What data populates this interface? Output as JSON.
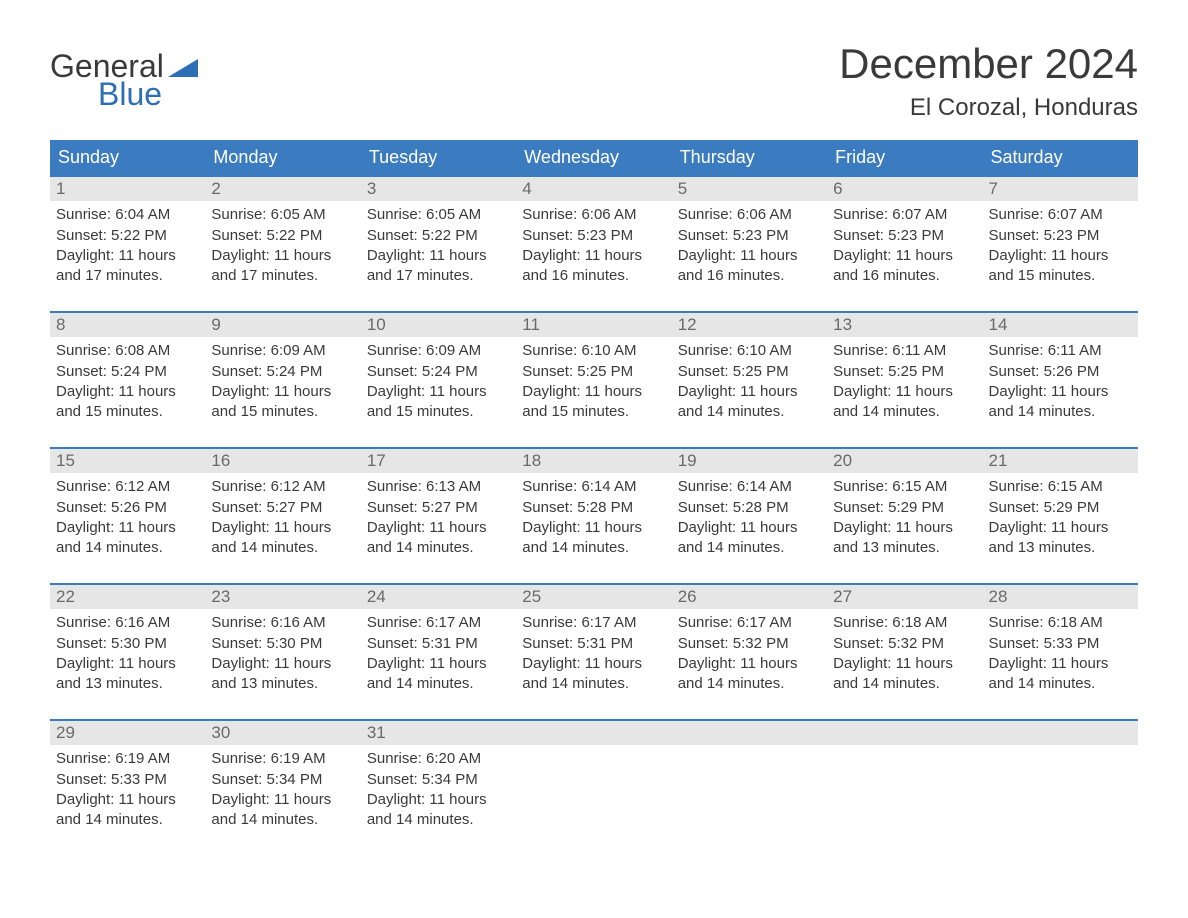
{
  "logo": {
    "word1": "General",
    "word2": "Blue",
    "accent_color": "#2d6fb5"
  },
  "header": {
    "title": "December 2024",
    "location": "El Corozal, Honduras"
  },
  "colors": {
    "header_bg": "#3b7bbf",
    "header_text": "#ffffff",
    "daynum_bg": "#e6e6e6",
    "daynum_text": "#6a6a6a",
    "body_text": "#3a3a3a",
    "week_border": "#3b7bbf",
    "page_bg": "#ffffff"
  },
  "typography": {
    "month_title_fontsize": 42,
    "location_fontsize": 24,
    "dow_fontsize": 18,
    "daynum_fontsize": 17,
    "daytext_fontsize": 15,
    "logo_fontsize": 32
  },
  "days_of_week": [
    "Sunday",
    "Monday",
    "Tuesday",
    "Wednesday",
    "Thursday",
    "Friday",
    "Saturday"
  ],
  "weeks": [
    [
      {
        "n": "1",
        "sunrise": "Sunrise: 6:04 AM",
        "sunset": "Sunset: 5:22 PM",
        "dl1": "Daylight: 11 hours",
        "dl2": "and 17 minutes."
      },
      {
        "n": "2",
        "sunrise": "Sunrise: 6:05 AM",
        "sunset": "Sunset: 5:22 PM",
        "dl1": "Daylight: 11 hours",
        "dl2": "and 17 minutes."
      },
      {
        "n": "3",
        "sunrise": "Sunrise: 6:05 AM",
        "sunset": "Sunset: 5:22 PM",
        "dl1": "Daylight: 11 hours",
        "dl2": "and 17 minutes."
      },
      {
        "n": "4",
        "sunrise": "Sunrise: 6:06 AM",
        "sunset": "Sunset: 5:23 PM",
        "dl1": "Daylight: 11 hours",
        "dl2": "and 16 minutes."
      },
      {
        "n": "5",
        "sunrise": "Sunrise: 6:06 AM",
        "sunset": "Sunset: 5:23 PM",
        "dl1": "Daylight: 11 hours",
        "dl2": "and 16 minutes."
      },
      {
        "n": "6",
        "sunrise": "Sunrise: 6:07 AM",
        "sunset": "Sunset: 5:23 PM",
        "dl1": "Daylight: 11 hours",
        "dl2": "and 16 minutes."
      },
      {
        "n": "7",
        "sunrise": "Sunrise: 6:07 AM",
        "sunset": "Sunset: 5:23 PM",
        "dl1": "Daylight: 11 hours",
        "dl2": "and 15 minutes."
      }
    ],
    [
      {
        "n": "8",
        "sunrise": "Sunrise: 6:08 AM",
        "sunset": "Sunset: 5:24 PM",
        "dl1": "Daylight: 11 hours",
        "dl2": "and 15 minutes."
      },
      {
        "n": "9",
        "sunrise": "Sunrise: 6:09 AM",
        "sunset": "Sunset: 5:24 PM",
        "dl1": "Daylight: 11 hours",
        "dl2": "and 15 minutes."
      },
      {
        "n": "10",
        "sunrise": "Sunrise: 6:09 AM",
        "sunset": "Sunset: 5:24 PM",
        "dl1": "Daylight: 11 hours",
        "dl2": "and 15 minutes."
      },
      {
        "n": "11",
        "sunrise": "Sunrise: 6:10 AM",
        "sunset": "Sunset: 5:25 PM",
        "dl1": "Daylight: 11 hours",
        "dl2": "and 15 minutes."
      },
      {
        "n": "12",
        "sunrise": "Sunrise: 6:10 AM",
        "sunset": "Sunset: 5:25 PM",
        "dl1": "Daylight: 11 hours",
        "dl2": "and 14 minutes."
      },
      {
        "n": "13",
        "sunrise": "Sunrise: 6:11 AM",
        "sunset": "Sunset: 5:25 PM",
        "dl1": "Daylight: 11 hours",
        "dl2": "and 14 minutes."
      },
      {
        "n": "14",
        "sunrise": "Sunrise: 6:11 AM",
        "sunset": "Sunset: 5:26 PM",
        "dl1": "Daylight: 11 hours",
        "dl2": "and 14 minutes."
      }
    ],
    [
      {
        "n": "15",
        "sunrise": "Sunrise: 6:12 AM",
        "sunset": "Sunset: 5:26 PM",
        "dl1": "Daylight: 11 hours",
        "dl2": "and 14 minutes."
      },
      {
        "n": "16",
        "sunrise": "Sunrise: 6:12 AM",
        "sunset": "Sunset: 5:27 PM",
        "dl1": "Daylight: 11 hours",
        "dl2": "and 14 minutes."
      },
      {
        "n": "17",
        "sunrise": "Sunrise: 6:13 AM",
        "sunset": "Sunset: 5:27 PM",
        "dl1": "Daylight: 11 hours",
        "dl2": "and 14 minutes."
      },
      {
        "n": "18",
        "sunrise": "Sunrise: 6:14 AM",
        "sunset": "Sunset: 5:28 PM",
        "dl1": "Daylight: 11 hours",
        "dl2": "and 14 minutes."
      },
      {
        "n": "19",
        "sunrise": "Sunrise: 6:14 AM",
        "sunset": "Sunset: 5:28 PM",
        "dl1": "Daylight: 11 hours",
        "dl2": "and 14 minutes."
      },
      {
        "n": "20",
        "sunrise": "Sunrise: 6:15 AM",
        "sunset": "Sunset: 5:29 PM",
        "dl1": "Daylight: 11 hours",
        "dl2": "and 13 minutes."
      },
      {
        "n": "21",
        "sunrise": "Sunrise: 6:15 AM",
        "sunset": "Sunset: 5:29 PM",
        "dl1": "Daylight: 11 hours",
        "dl2": "and 13 minutes."
      }
    ],
    [
      {
        "n": "22",
        "sunrise": "Sunrise: 6:16 AM",
        "sunset": "Sunset: 5:30 PM",
        "dl1": "Daylight: 11 hours",
        "dl2": "and 13 minutes."
      },
      {
        "n": "23",
        "sunrise": "Sunrise: 6:16 AM",
        "sunset": "Sunset: 5:30 PM",
        "dl1": "Daylight: 11 hours",
        "dl2": "and 13 minutes."
      },
      {
        "n": "24",
        "sunrise": "Sunrise: 6:17 AM",
        "sunset": "Sunset: 5:31 PM",
        "dl1": "Daylight: 11 hours",
        "dl2": "and 14 minutes."
      },
      {
        "n": "25",
        "sunrise": "Sunrise: 6:17 AM",
        "sunset": "Sunset: 5:31 PM",
        "dl1": "Daylight: 11 hours",
        "dl2": "and 14 minutes."
      },
      {
        "n": "26",
        "sunrise": "Sunrise: 6:17 AM",
        "sunset": "Sunset: 5:32 PM",
        "dl1": "Daylight: 11 hours",
        "dl2": "and 14 minutes."
      },
      {
        "n": "27",
        "sunrise": "Sunrise: 6:18 AM",
        "sunset": "Sunset: 5:32 PM",
        "dl1": "Daylight: 11 hours",
        "dl2": "and 14 minutes."
      },
      {
        "n": "28",
        "sunrise": "Sunrise: 6:18 AM",
        "sunset": "Sunset: 5:33 PM",
        "dl1": "Daylight: 11 hours",
        "dl2": "and 14 minutes."
      }
    ],
    [
      {
        "n": "29",
        "sunrise": "Sunrise: 6:19 AM",
        "sunset": "Sunset: 5:33 PM",
        "dl1": "Daylight: 11 hours",
        "dl2": "and 14 minutes."
      },
      {
        "n": "30",
        "sunrise": "Sunrise: 6:19 AM",
        "sunset": "Sunset: 5:34 PM",
        "dl1": "Daylight: 11 hours",
        "dl2": "and 14 minutes."
      },
      {
        "n": "31",
        "sunrise": "Sunrise: 6:20 AM",
        "sunset": "Sunset: 5:34 PM",
        "dl1": "Daylight: 11 hours",
        "dl2": "and 14 minutes."
      },
      {
        "n": "",
        "sunrise": "",
        "sunset": "",
        "dl1": "",
        "dl2": ""
      },
      {
        "n": "",
        "sunrise": "",
        "sunset": "",
        "dl1": "",
        "dl2": ""
      },
      {
        "n": "",
        "sunrise": "",
        "sunset": "",
        "dl1": "",
        "dl2": ""
      },
      {
        "n": "",
        "sunrise": "",
        "sunset": "",
        "dl1": "",
        "dl2": ""
      }
    ]
  ]
}
